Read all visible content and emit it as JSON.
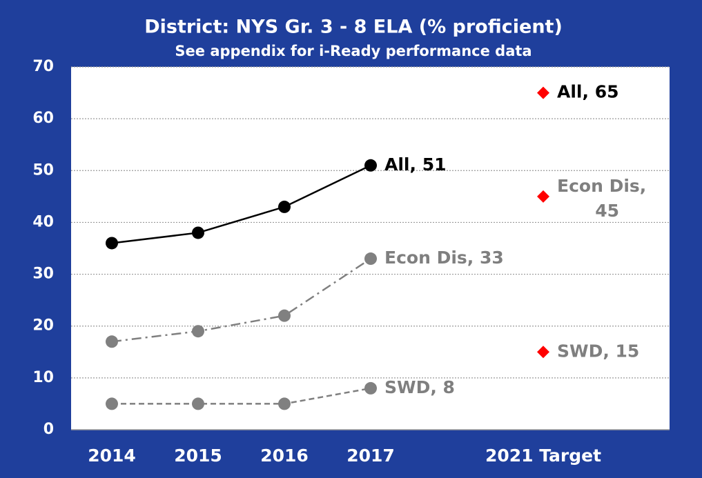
{
  "chart_data": {
    "type": "line",
    "title": "District:  NYS Gr. 3 - 8 ELA (% proficient)",
    "subtitle": "See appendix for i-Ready performance data",
    "categories": [
      "2014",
      "2015",
      "2016",
      "2017",
      "2021 Target"
    ],
    "series": [
      {
        "name": "All",
        "color": "#000000",
        "dash": "solid",
        "label_color": "#000000",
        "values": [
          36,
          38,
          43,
          51,
          65
        ],
        "value_labels": [
          null,
          null,
          null,
          "All, 51",
          "All, 65"
        ],
        "marker_shapes": [
          "circle",
          "circle",
          "circle",
          "circle",
          "diamond"
        ],
        "marker_colors": [
          "#000000",
          "#000000",
          "#000000",
          "#000000",
          "#ff0000"
        ]
      },
      {
        "name": "Econ Dis",
        "color": "#7f7f7f",
        "dash": "dashdot",
        "label_color": "#7f7f7f",
        "values": [
          17,
          19,
          22,
          33,
          45
        ],
        "value_labels": [
          null,
          null,
          null,
          "Econ Dis, 33",
          "Econ Dis, 45"
        ],
        "marker_shapes": [
          "circle",
          "circle",
          "circle",
          "circle",
          "diamond"
        ],
        "marker_colors": [
          "#808080",
          "#808080",
          "#808080",
          "#808080",
          "#ff0000"
        ]
      },
      {
        "name": "SWD",
        "color": "#7f7f7f",
        "dash": "dashed",
        "label_color": "#7f7f7f",
        "values": [
          5,
          5,
          5,
          8,
          15
        ],
        "value_labels": [
          null,
          null,
          null,
          "SWD, 8",
          "SWD, 15"
        ],
        "marker_shapes": [
          "circle",
          "circle",
          "circle",
          "circle",
          "diamond"
        ],
        "marker_colors": [
          "#808080",
          "#808080",
          "#808080",
          "#808080",
          "#ff0000"
        ]
      }
    ],
    "ylim": [
      0,
      70
    ],
    "yticks": [
      0,
      10,
      20,
      30,
      40,
      50,
      60,
      70
    ],
    "grid": true
  }
}
